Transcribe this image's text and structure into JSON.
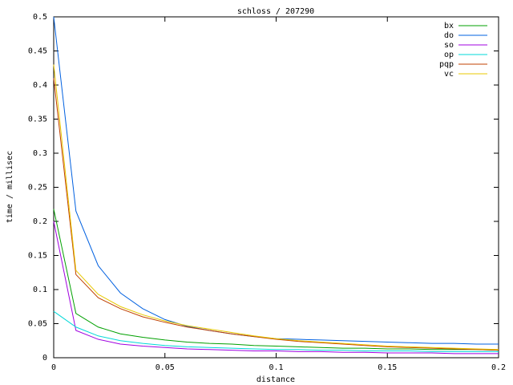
{
  "chart_data": {
    "type": "line",
    "title": "schloss / 207290",
    "x_label": "distance",
    "y_label": "time / millisec",
    "x": [
      0,
      0.01,
      0.02,
      0.03,
      0.04,
      0.05,
      0.06,
      0.07,
      0.08,
      0.09,
      0.1,
      0.11,
      0.12,
      0.13,
      0.14,
      0.15,
      0.16,
      0.17,
      0.18,
      0.19,
      0.2
    ],
    "series": [
      {
        "name": "bx",
        "color": "#00a000",
        "values": [
          0.218,
          0.065,
          0.045,
          0.035,
          0.03,
          0.026,
          0.023,
          0.021,
          0.02,
          0.018,
          0.017,
          0.016,
          0.015,
          0.014,
          0.014,
          0.013,
          0.013,
          0.012,
          0.012,
          0.012,
          0.011
        ]
      },
      {
        "name": "do",
        "color": "#0060e0",
        "values": [
          0.5,
          0.215,
          0.135,
          0.095,
          0.072,
          0.056,
          0.046,
          0.04,
          0.035,
          0.031,
          0.028,
          0.027,
          0.026,
          0.025,
          0.024,
          0.023,
          0.022,
          0.021,
          0.021,
          0.02,
          0.02
        ]
      },
      {
        "name": "so",
        "color": "#a000e0",
        "values": [
          0.2,
          0.04,
          0.027,
          0.02,
          0.017,
          0.015,
          0.013,
          0.012,
          0.011,
          0.01,
          0.01,
          0.009,
          0.009,
          0.008,
          0.008,
          0.007,
          0.007,
          0.007,
          0.006,
          0.006,
          0.006
        ]
      },
      {
        "name": "op",
        "color": "#00d8d8",
        "values": [
          0.068,
          0.045,
          0.032,
          0.025,
          0.021,
          0.018,
          0.016,
          0.015,
          0.014,
          0.013,
          0.012,
          0.012,
          0.011,
          0.011,
          0.01,
          0.01,
          0.01,
          0.009,
          0.009,
          0.009,
          0.009
        ]
      },
      {
        "name": "pqp",
        "color": "#c04000",
        "values": [
          0.41,
          0.122,
          0.088,
          0.072,
          0.06,
          0.052,
          0.045,
          0.04,
          0.035,
          0.031,
          0.027,
          0.024,
          0.022,
          0.02,
          0.018,
          0.016,
          0.015,
          0.014,
          0.013,
          0.012,
          0.011
        ]
      },
      {
        "name": "vc",
        "color": "#e8c800",
        "values": [
          0.43,
          0.128,
          0.093,
          0.075,
          0.063,
          0.054,
          0.047,
          0.042,
          0.037,
          0.032,
          0.028,
          0.025,
          0.023,
          0.021,
          0.019,
          0.017,
          0.016,
          0.015,
          0.014,
          0.013,
          0.012
        ]
      }
    ],
    "xlim": [
      0,
      0.2
    ],
    "xticks": [
      0,
      0.05,
      0.1,
      0.15,
      0.2
    ],
    "ylim": [
      0,
      0.5
    ],
    "yticks": [
      0,
      0.05,
      0.1,
      0.15,
      0.2,
      0.25,
      0.3,
      0.35,
      0.4,
      0.45,
      0.5
    ],
    "grid": false,
    "legend": "top-right"
  }
}
